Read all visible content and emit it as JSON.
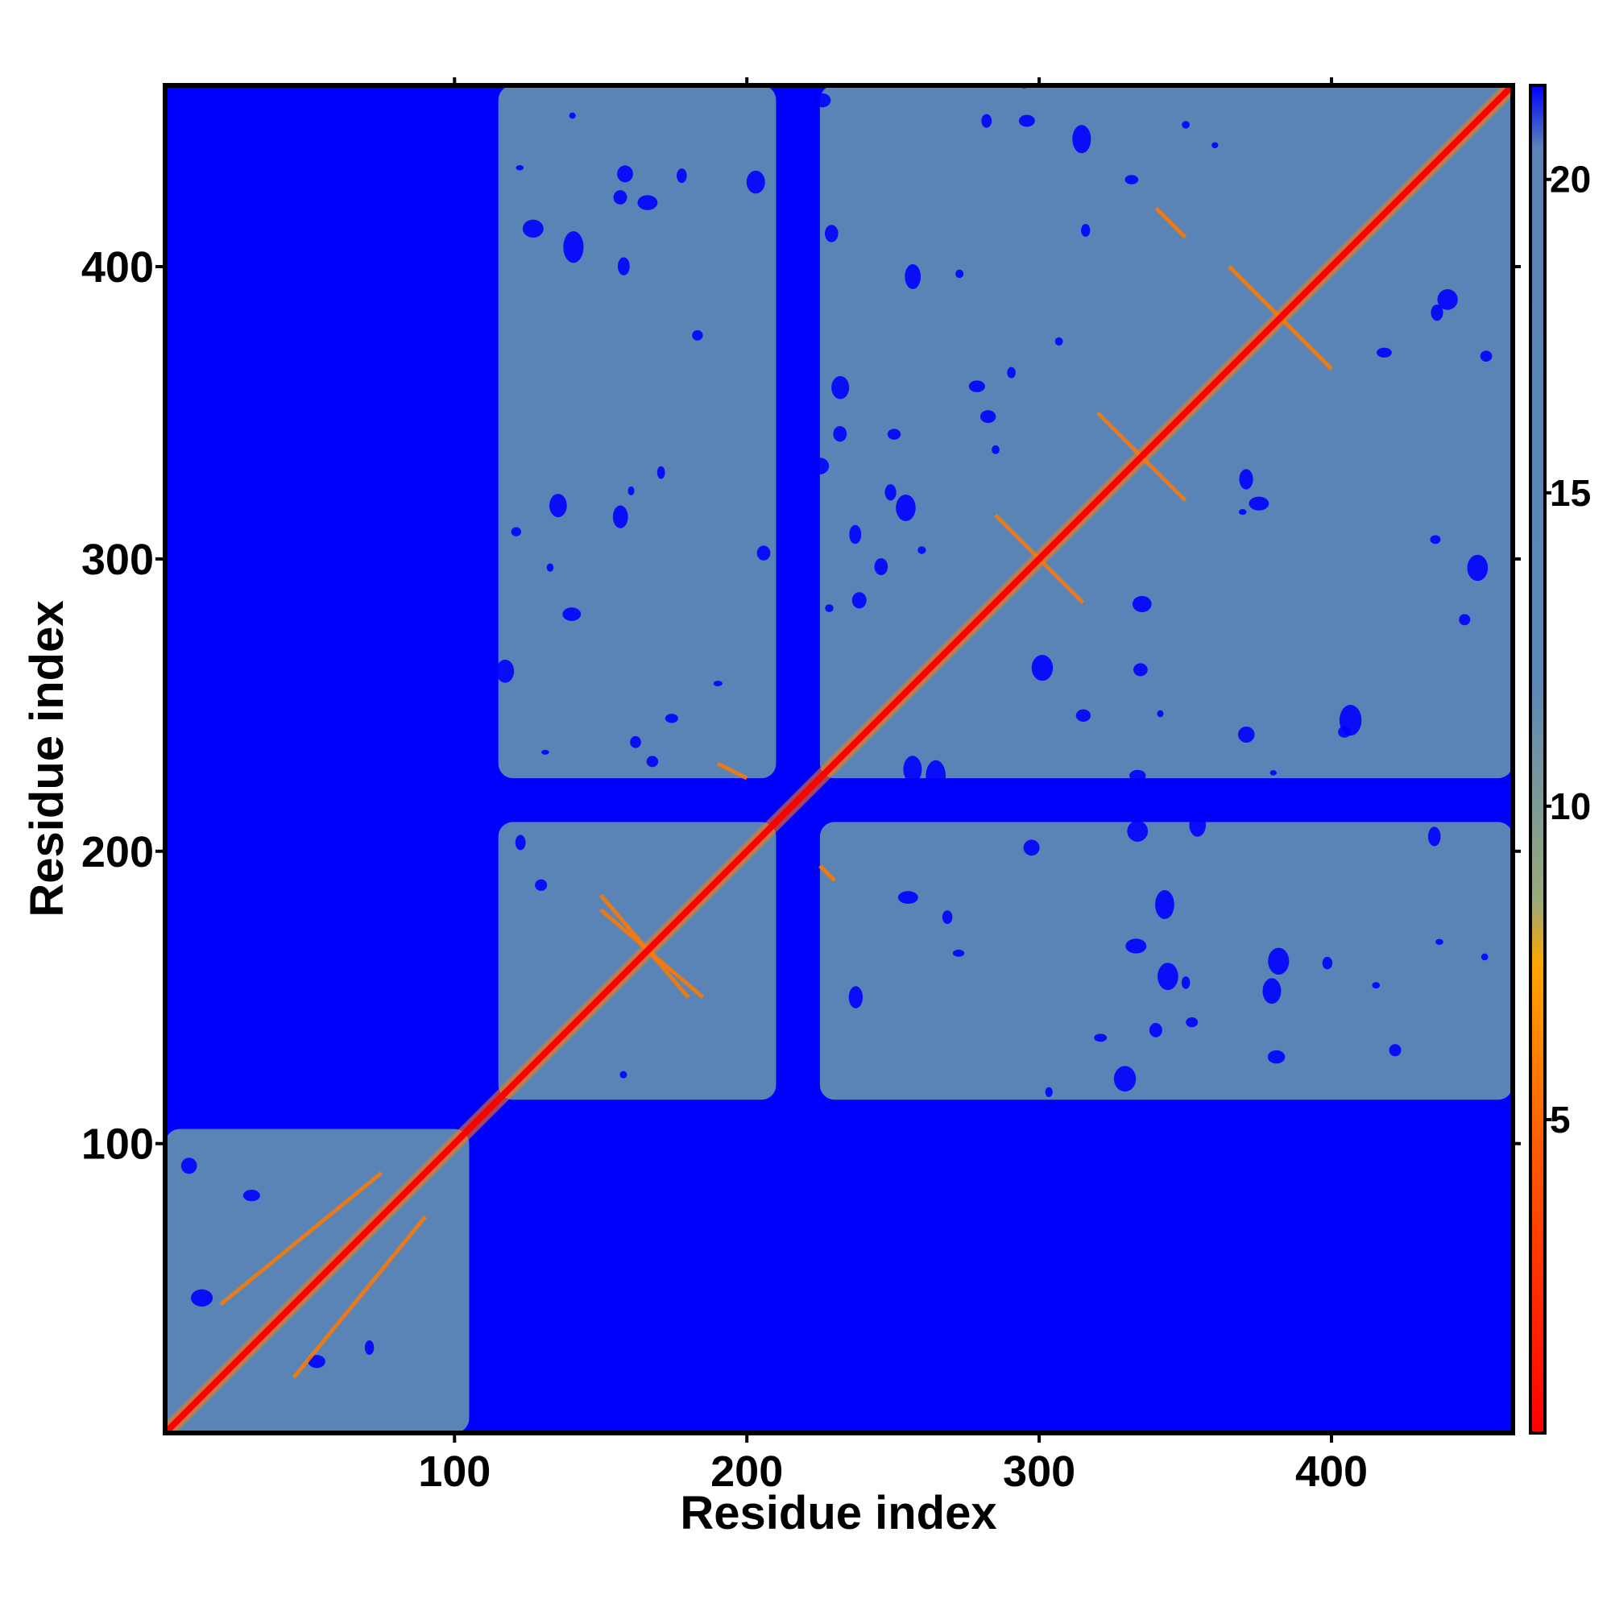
{
  "chart_data": {
    "type": "heatmap",
    "title": "",
    "xlabel": "Residue index",
    "ylabel": "Residue index",
    "x_range": [
      1,
      462
    ],
    "y_range": [
      1,
      462
    ],
    "x_ticks": [
      100,
      200,
      300,
      400
    ],
    "y_ticks": [
      100,
      200,
      300,
      400
    ],
    "colorbar": {
      "range": [
        0,
        21.5
      ],
      "ticks": [
        5,
        10,
        15,
        20
      ],
      "color_stops": [
        {
          "value": 0,
          "color": "#ff0000"
        },
        {
          "value": 4.5,
          "color": "#ff5a00"
        },
        {
          "value": 7.5,
          "color": "#ffa500"
        },
        {
          "value": 8.5,
          "color": "#9aaa7a"
        },
        {
          "value": 12,
          "color": "#5a86b8"
        },
        {
          "value": 20.5,
          "color": "#5b84b6"
        },
        {
          "value": 21.5,
          "color": "#0000ff"
        }
      ]
    },
    "colors": {
      "far": "#0000ff",
      "medium": "#5b84b6",
      "close": "#ff7a00",
      "contact": "#ff0000",
      "frame": "#000000"
    },
    "grid": false,
    "legend": "colorbar-right",
    "domains": [
      {
        "start": 1,
        "end": 103
      },
      {
        "start": 117,
        "end": 212
      },
      {
        "start": 222,
        "end": 462
      }
    ],
    "contact_blocks": [
      {
        "x": [
          1,
          105
        ],
        "y": [
          1,
          105
        ]
      },
      {
        "x": [
          115,
          210
        ],
        "y": [
          115,
          210
        ]
      },
      {
        "x": [
          115,
          210
        ],
        "y": [
          225,
          462
        ]
      },
      {
        "x": [
          225,
          462
        ],
        "y": [
          115,
          210
        ]
      },
      {
        "x": [
          225,
          462
        ],
        "y": [
          225,
          462
        ]
      }
    ],
    "contact_lines": [
      {
        "from": [
          20,
          45
        ],
        "to": [
          75,
          90
        ]
      },
      {
        "from": [
          45,
          20
        ],
        "to": [
          90,
          75
        ]
      },
      {
        "from": [
          150,
          180
        ],
        "to": [
          185,
          150
        ]
      },
      {
        "from": [
          180,
          150
        ],
        "to": [
          150,
          185
        ]
      },
      {
        "from": [
          190,
          230
        ],
        "to": [
          200,
          225
        ]
      },
      {
        "from": [
          225,
          195
        ],
        "to": [
          230,
          190
        ]
      },
      {
        "from": [
          285,
          315
        ],
        "to": [
          315,
          285
        ]
      },
      {
        "from": [
          365,
          400
        ],
        "to": [
          400,
          365
        ]
      },
      {
        "from": [
          320,
          350
        ],
        "to": [
          350,
          320
        ]
      },
      {
        "from": [
          340,
          420
        ],
        "to": [
          350,
          410
        ]
      }
    ]
  }
}
